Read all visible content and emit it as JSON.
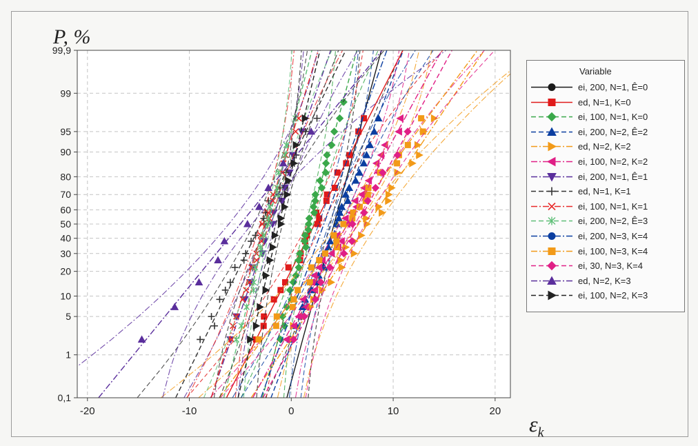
{
  "chart_data": {
    "type": "line",
    "xlabel": "ε",
    "xlabel_sub": "k",
    "ylabel": "P, %",
    "y_scale": "probability",
    "xlim": [
      -21,
      21.5
    ],
    "x_ticks": [
      -20,
      -10,
      0,
      10,
      20
    ],
    "x_tick_labels": [
      "-20",
      "-10",
      "0",
      "10",
      "20"
    ],
    "ylim": [
      0.1,
      99.9
    ],
    "y_ticks": [
      0.1,
      1,
      5,
      10,
      20,
      30,
      40,
      50,
      60,
      70,
      80,
      90,
      95,
      99,
      99.9
    ],
    "y_tick_labels": [
      "0,1",
      "1",
      "5",
      "10",
      "20",
      "30",
      "40",
      "50",
      "60",
      "70",
      "80",
      "90",
      "95",
      "99",
      "99,9"
    ],
    "grid": true,
    "legend_title": "Variable",
    "legend_position": "right",
    "series": [
      {
        "name": "ei, 200, N=1, Ê=0",
        "color": "#1a1a1a",
        "marker": "circle",
        "dash": "solid",
        "mean": 4.2,
        "sd": 1.5,
        "points": 0
      },
      {
        "name": "ed, N=1, K=0",
        "color": "#e01b1b",
        "marker": "square",
        "dash": "solid",
        "mean": 2.3,
        "sd": 2.8,
        "points": 22
      },
      {
        "name": "ei, 100, N=1, K=0",
        "color": "#3aa84a",
        "marker": "diamond",
        "dash": "dash",
        "mean": 1.8,
        "sd": 1.5,
        "points": 30
      },
      {
        "name": "ei, 200, N=2, Ê=2",
        "color": "#0b3ea0",
        "marker": "triangle-up",
        "dash": "dash",
        "mean": 4.5,
        "sd": 2.1,
        "points": 28
      },
      {
        "name": "ed, N=2, K=2",
        "color": "#f29a18",
        "marker": "triangle-right",
        "dash": "dashdot",
        "mean": 7.5,
        "sd": 3.7,
        "points": 26
      },
      {
        "name": "ei, 100, N=2, K=2",
        "color": "#e01f86",
        "marker": "triangle-left",
        "dash": "dashdot",
        "mean": 5.5,
        "sd": 3.0,
        "points": 28
      },
      {
        "name": "ei, 200, N=1, Ê=1",
        "color": "#5a2e9c",
        "marker": "triangle-down",
        "dash": "dashdot",
        "mean": -2.0,
        "sd": 1.9,
        "points": 14
      },
      {
        "name": "ed, N=1, K=1",
        "color": "#333333",
        "marker": "plus",
        "dash": "dash",
        "mean": -3.0,
        "sd": 2.7,
        "points": 22
      },
      {
        "name": "ei, 100, N=1, K=1",
        "color": "#e82a2a",
        "marker": "x",
        "dash": "dashdot",
        "mean": -2.6,
        "sd": 1.7,
        "points": 22
      },
      {
        "name": "ei, 200, N=2, Ê=3",
        "color": "#5fbf78",
        "marker": "asterisk",
        "dash": "dash",
        "mean": -2.3,
        "sd": 1.4,
        "points": 18
      },
      {
        "name": "ei, 200, N=3, K=4",
        "color": "#0b3ea0",
        "marker": "circle",
        "dash": "dashdot",
        "mean": 3.2,
        "sd": 2.0,
        "points": 0
      },
      {
        "name": "ei, 100, N=3, K=4",
        "color": "#f29a18",
        "marker": "square",
        "dash": "dashdot",
        "mean": 5.6,
        "sd": 4.1,
        "points": 26
      },
      {
        "name": "ei, 30, N=3, K=4",
        "color": "#e01f86",
        "marker": "diamond",
        "dash": "dash",
        "mean": 6.5,
        "sd": 3.0,
        "points": 14
      },
      {
        "name": "ed, N=2, K=3",
        "color": "#5a2e9c",
        "marker": "triangle-up",
        "dash": "dashdot",
        "mean": -5.0,
        "sd": 4.5,
        "points": 10
      },
      {
        "name": "ei, 100, N=2, K=3",
        "color": "#222222",
        "marker": "triangle-right",
        "dash": "dash",
        "mean": -1.2,
        "sd": 1.3,
        "points": 16
      }
    ]
  }
}
